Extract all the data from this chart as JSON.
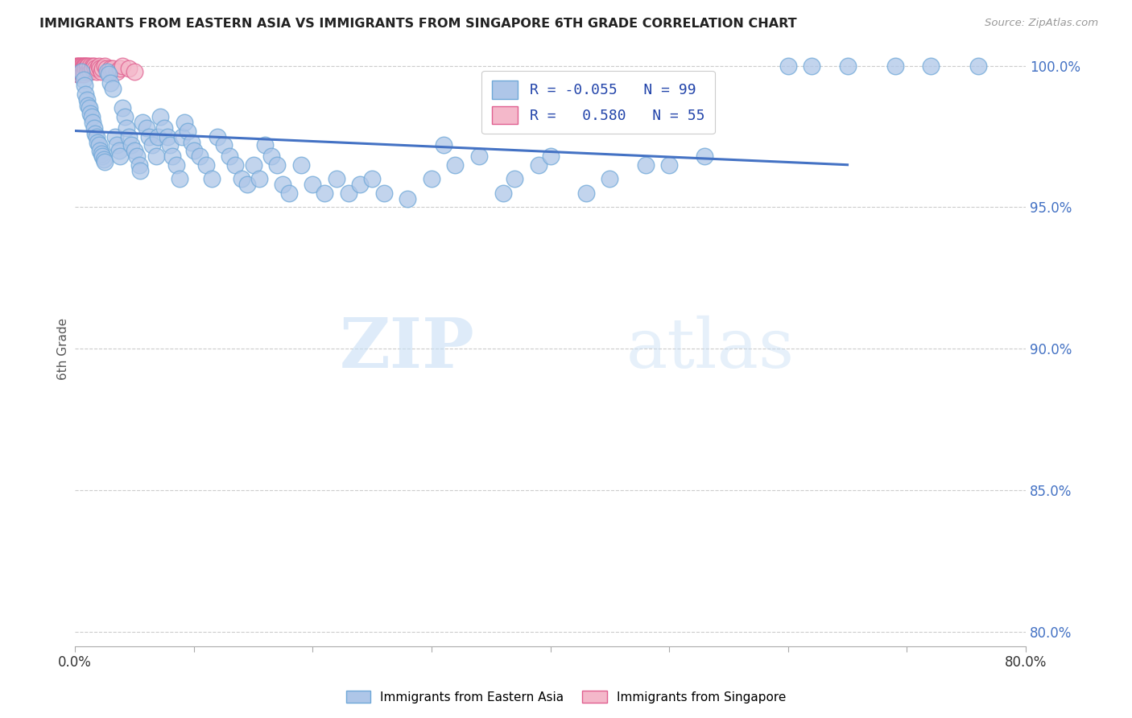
{
  "title": "IMMIGRANTS FROM EASTERN ASIA VS IMMIGRANTS FROM SINGAPORE 6TH GRADE CORRELATION CHART",
  "source": "Source: ZipAtlas.com",
  "ylabel": "6th Grade",
  "y_ticks": [
    80.0,
    85.0,
    90.0,
    95.0,
    100.0
  ],
  "xlim": [
    0.0,
    0.8
  ],
  "ylim": [
    0.795,
    1.005
  ],
  "legend_r1": "R = -0.055",
  "legend_n1": "N = 99",
  "legend_r2": "R =  0.580",
  "legend_n2": "N = 55",
  "blue_color": "#aec6e8",
  "blue_edge": "#6fa8d8",
  "blue_line": "#4472c4",
  "pink_color": "#f4b8ca",
  "pink_edge": "#e06090",
  "watermark_zip": "ZIP",
  "watermark_atlas": "atlas",
  "blue_x": [
    0.005,
    0.007,
    0.008,
    0.009,
    0.01,
    0.011,
    0.012,
    0.013,
    0.014,
    0.015,
    0.016,
    0.017,
    0.018,
    0.019,
    0.02,
    0.021,
    0.022,
    0.023,
    0.024,
    0.025,
    0.027,
    0.028,
    0.03,
    0.032,
    0.034,
    0.035,
    0.037,
    0.038,
    0.04,
    0.042,
    0.043,
    0.045,
    0.047,
    0.05,
    0.052,
    0.054,
    0.055,
    0.057,
    0.06,
    0.062,
    0.065,
    0.068,
    0.07,
    0.072,
    0.075,
    0.078,
    0.08,
    0.082,
    0.085,
    0.088,
    0.09,
    0.092,
    0.095,
    0.098,
    0.1,
    0.105,
    0.11,
    0.115,
    0.12,
    0.125,
    0.13,
    0.135,
    0.14,
    0.145,
    0.15,
    0.155,
    0.16,
    0.165,
    0.17,
    0.175,
    0.18,
    0.19,
    0.2,
    0.21,
    0.22,
    0.23,
    0.24,
    0.25,
    0.26,
    0.28,
    0.3,
    0.31,
    0.32,
    0.34,
    0.36,
    0.37,
    0.39,
    0.4,
    0.43,
    0.45,
    0.48,
    0.5,
    0.53,
    0.6,
    0.62,
    0.65,
    0.69,
    0.72,
    0.76
  ],
  "blue_y": [
    0.998,
    0.995,
    0.993,
    0.99,
    0.988,
    0.986,
    0.985,
    0.983,
    0.982,
    0.98,
    0.978,
    0.976,
    0.975,
    0.973,
    0.972,
    0.97,
    0.969,
    0.968,
    0.967,
    0.966,
    0.998,
    0.997,
    0.994,
    0.992,
    0.975,
    0.972,
    0.97,
    0.968,
    0.985,
    0.982,
    0.978,
    0.975,
    0.972,
    0.97,
    0.968,
    0.965,
    0.963,
    0.98,
    0.978,
    0.975,
    0.972,
    0.968,
    0.975,
    0.982,
    0.978,
    0.975,
    0.972,
    0.968,
    0.965,
    0.96,
    0.975,
    0.98,
    0.977,
    0.973,
    0.97,
    0.968,
    0.965,
    0.96,
    0.975,
    0.972,
    0.968,
    0.965,
    0.96,
    0.958,
    0.965,
    0.96,
    0.972,
    0.968,
    0.965,
    0.958,
    0.955,
    0.965,
    0.958,
    0.955,
    0.96,
    0.955,
    0.958,
    0.96,
    0.955,
    0.953,
    0.96,
    0.972,
    0.965,
    0.968,
    0.955,
    0.96,
    0.965,
    0.968,
    0.955,
    0.96,
    0.965,
    0.965,
    0.968,
    1.0,
    1.0,
    1.0,
    1.0,
    1.0,
    1.0
  ],
  "pink_x": [
    0.001,
    0.001,
    0.001,
    0.002,
    0.002,
    0.002,
    0.002,
    0.003,
    0.003,
    0.003,
    0.003,
    0.004,
    0.004,
    0.004,
    0.005,
    0.005,
    0.005,
    0.006,
    0.006,
    0.006,
    0.007,
    0.007,
    0.007,
    0.008,
    0.008,
    0.009,
    0.009,
    0.01,
    0.01,
    0.011,
    0.011,
    0.012,
    0.013,
    0.013,
    0.014,
    0.015,
    0.015,
    0.016,
    0.017,
    0.018,
    0.019,
    0.02,
    0.021,
    0.022,
    0.023,
    0.025,
    0.026,
    0.028,
    0.03,
    0.032,
    0.035,
    0.038,
    0.04,
    0.045,
    0.05
  ],
  "pink_y": [
    1.0,
    0.999,
    0.998,
    1.0,
    0.999,
    0.998,
    0.997,
    1.0,
    0.999,
    0.998,
    0.997,
    1.0,
    0.999,
    0.998,
    1.0,
    0.999,
    0.998,
    1.0,
    0.999,
    0.997,
    1.0,
    0.999,
    0.997,
    1.0,
    0.998,
    1.0,
    0.999,
    1.0,
    0.999,
    1.0,
    0.998,
    0.999,
    1.0,
    0.998,
    0.999,
    1.0,
    0.999,
    1.0,
    0.999,
    0.998,
    0.999,
    1.0,
    0.999,
    0.998,
    0.999,
    1.0,
    0.999,
    0.998,
    0.999,
    0.999,
    0.998,
    0.999,
    1.0,
    0.999,
    0.998
  ],
  "trend_x": [
    0.0,
    0.65
  ],
  "trend_y": [
    0.977,
    0.965
  ]
}
